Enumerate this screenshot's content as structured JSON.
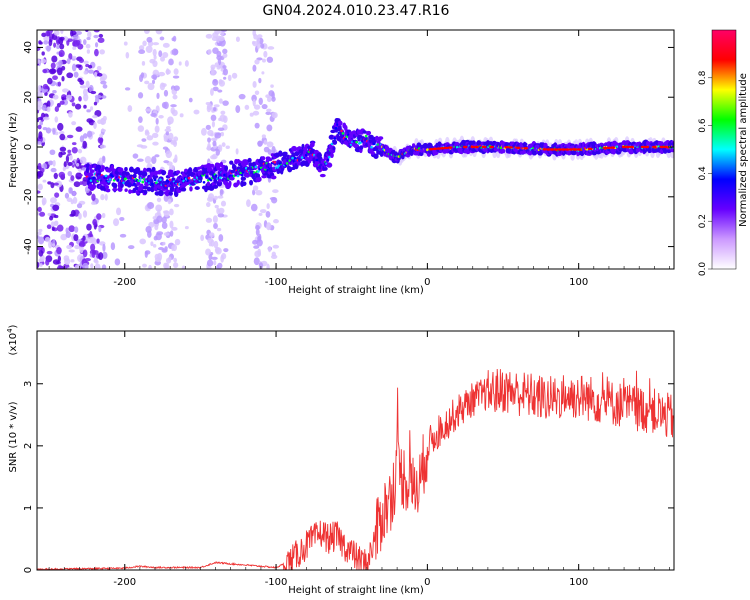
{
  "title": "GN04.2024.010.23.47.R16",
  "chart_data": [
    {
      "type": "heatmap",
      "panel": "top",
      "xlabel": "Height of straight line (km)",
      "ylabel": "Frequency (Hz)",
      "xlim": [
        -258,
        163
      ],
      "ylim": [
        -49,
        47
      ],
      "xticks": [
        "-200",
        "-100",
        "0",
        "100"
      ],
      "yticks": [
        "40",
        "20",
        "0",
        "-20",
        "-40"
      ],
      "colorbar": {
        "label": "Normalized spectral amplitude",
        "range": [
          0.0,
          1.0
        ],
        "ticks": [
          "0.0",
          "0.2",
          "0.4",
          "0.6",
          "0.8"
        ],
        "colormap": [
          "#ffffff",
          "#cc99ff",
          "#6600ff",
          "#0000ff",
          "#00ffff",
          "#00ff00",
          "#ffff00",
          "#ff0000",
          "#ff0066"
        ]
      },
      "ridge": {
        "x": [
          -222,
          -200,
          -180,
          -160,
          -140,
          -120,
          -100,
          -85,
          -75,
          -70,
          -65,
          -60,
          -50,
          -40,
          -35,
          -30,
          -25,
          -20,
          -10,
          0,
          20,
          50,
          80,
          100,
          130,
          160
        ],
        "y": [
          -12,
          -13,
          -14,
          -14,
          -12,
          -10,
          -7,
          -4,
          -2,
          -8,
          -5,
          8,
          2,
          3,
          0,
          0,
          -3,
          -4,
          -1,
          -1,
          0,
          0,
          -1,
          -1,
          0,
          0
        ]
      }
    },
    {
      "type": "line",
      "panel": "bottom",
      "xlabel": "Height of straight line (km)",
      "ylabel": "SNR (10 * v/v)",
      "yscale_label": "(x10",
      "yscale_exp": "4",
      "xlim": [
        -258,
        163
      ],
      "ylim": [
        0,
        3.85
      ],
      "xticks": [
        "-200",
        "-100",
        "0",
        "100"
      ],
      "yticks": [
        "0",
        "1",
        "2",
        "3"
      ],
      "color": "#ee3333",
      "series": [
        {
          "x": [
            -258,
            -200,
            -190,
            -180,
            -150,
            -140,
            -100,
            -90,
            -80,
            -70,
            -65,
            -60,
            -55,
            -50,
            -45,
            -40,
            -35,
            -30,
            -25,
            -20,
            -15,
            -10,
            -5,
            0,
            10,
            20,
            30,
            40,
            50,
            60,
            70,
            80,
            90,
            100,
            110,
            120,
            130,
            140,
            150,
            155,
            163
          ],
          "y": [
            0.01,
            0.03,
            0.06,
            0.04,
            0.04,
            0.12,
            0.04,
            0.15,
            0.4,
            0.6,
            0.5,
            0.55,
            0.4,
            0.28,
            0.15,
            0.1,
            0.45,
            0.9,
            1.1,
            1.6,
            1.5,
            1.3,
            1.4,
            2.0,
            2.3,
            2.55,
            2.75,
            2.85,
            2.9,
            2.85,
            2.8,
            2.75,
            2.8,
            2.8,
            2.75,
            2.7,
            2.65,
            2.6,
            2.55,
            2.5,
            2.45
          ]
        }
      ]
    }
  ]
}
